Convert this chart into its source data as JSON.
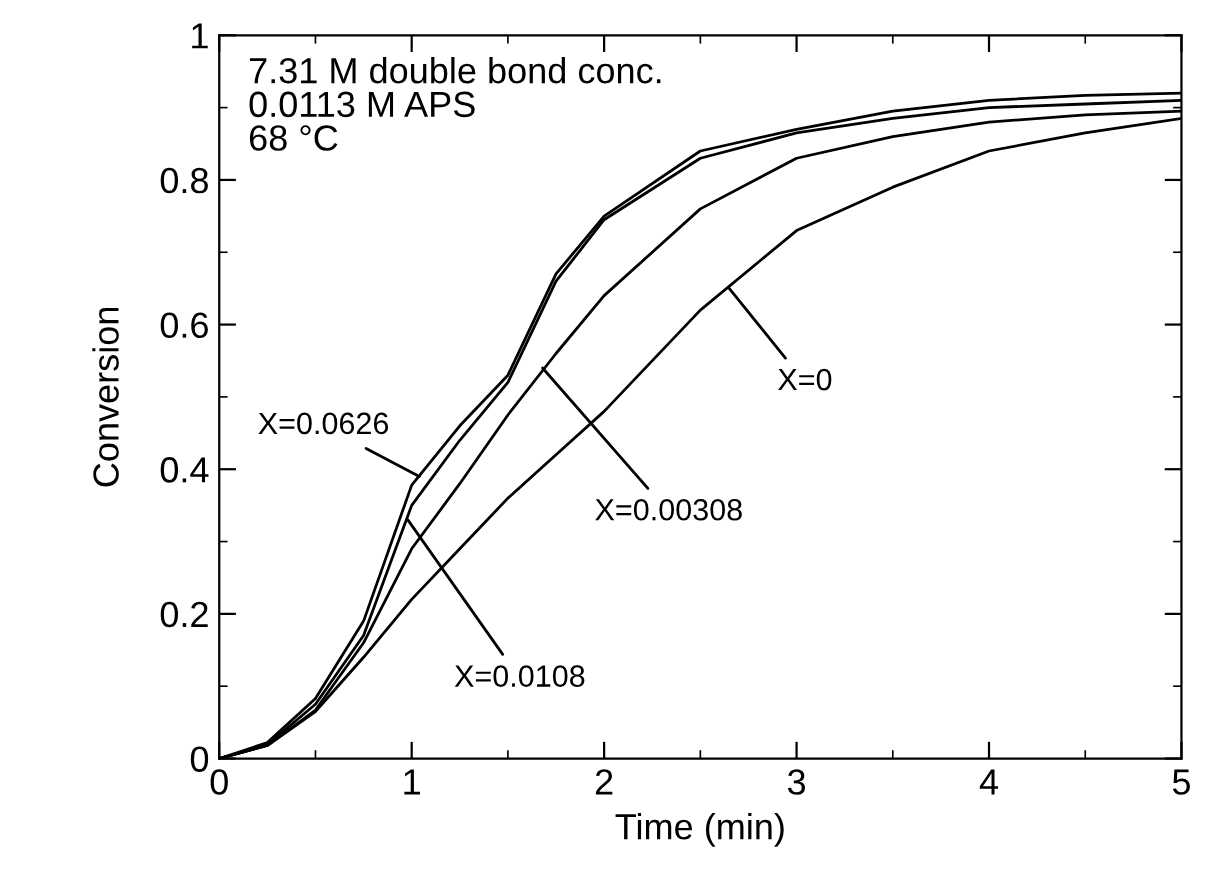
{
  "chart_data": {
    "type": "line",
    "xlabel": "Time (min)",
    "ylabel": "Conversion",
    "x": [
      0,
      0.25,
      0.5,
      0.75,
      1,
      1.25,
      1.5,
      1.75,
      2,
      2.5,
      3,
      3.5,
      4,
      4.5,
      5
    ],
    "series": [
      {
        "color": "#000000",
        "values": [
          0,
          0.022,
          0.083,
          0.19,
          0.378,
          0.46,
          0.53,
          0.67,
          0.75,
          0.84,
          0.87,
          0.895,
          0.91,
          0.917,
          0.92
        ]
      },
      {
        "color": "#000000",
        "values": [
          0,
          0.019,
          0.075,
          0.17,
          0.35,
          0.44,
          0.52,
          0.66,
          0.745,
          0.83,
          0.865,
          0.885,
          0.9,
          0.905,
          0.91
        ]
      },
      {
        "color": "#000000",
        "values": [
          0,
          0.018,
          0.067,
          0.16,
          0.29,
          0.38,
          0.475,
          0.56,
          0.64,
          0.76,
          0.83,
          0.86,
          0.88,
          0.89,
          0.895
        ]
      },
      {
        "color": "#000000",
        "values": [
          0,
          0.018,
          0.065,
          0.14,
          0.22,
          0.29,
          0.36,
          0.42,
          0.48,
          0.62,
          0.73,
          0.79,
          0.84,
          0.865,
          0.885
        ]
      }
    ],
    "annotations": [
      "7.31 M double bond conc.\n0.0113 M APS\n68 °C",
      {
        "text": "X=0.0626",
        "x": 1.04,
        "y": 0.39
      },
      {
        "text": "X=0.0108",
        "x": 0.98,
        "y": 0.33
      },
      {
        "text": "X=0.00308",
        "x": 1.68,
        "y": 0.54
      },
      {
        "text": "X=0",
        "x": 2.65,
        "y": 0.65
      }
    ],
    "xlim": [
      0,
      5
    ],
    "ylim": [
      0,
      1
    ],
    "xticks": [
      0,
      1,
      2,
      3,
      4,
      5
    ],
    "yticks": [
      0,
      0.2,
      0.4,
      0.6,
      0.8,
      1
    ],
    "grid": false,
    "legend": false,
    "marker": "none",
    "line_style": "solid"
  }
}
